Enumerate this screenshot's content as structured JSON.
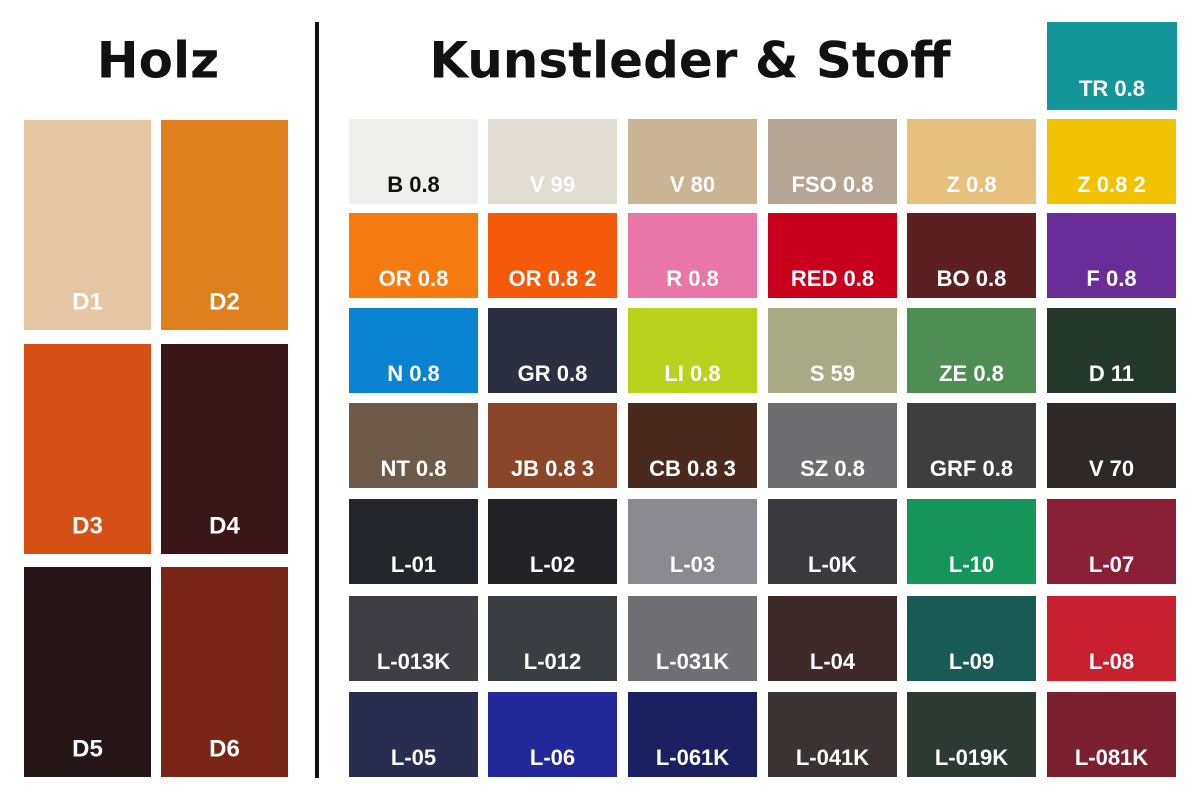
{
  "holz": {
    "title": "Holz",
    "swatches": [
      {
        "label": "D1",
        "color": "#e6c6a2"
      },
      {
        "label": "D2",
        "color": "#de7e1c"
      },
      {
        "label": "D3",
        "color": "#d65016"
      },
      {
        "label": "D4",
        "color": "#3a1619"
      },
      {
        "label": "D5",
        "color": "#251717"
      },
      {
        "label": "D6",
        "color": "#7a2616"
      }
    ]
  },
  "stoff": {
    "title": "Kunstleder & Stoff",
    "extra": {
      "label": "TR 0.8",
      "color": "#14979a"
    },
    "rows": [
      [
        {
          "label": "B 0.8",
          "color": "#efefed",
          "label_color": "#111111"
        },
        {
          "label": "V 99",
          "color": "#e2ddd2"
        },
        {
          "label": "V 80",
          "color": "#c9b594"
        },
        {
          "label": "FSO 0.8",
          "color": "#b4a595"
        },
        {
          "label": "Z 0.8",
          "color": "#e8c07e"
        },
        {
          "label": "Z 0.8 2",
          "color": "#f2c200"
        }
      ],
      [
        {
          "label": "OR 0.8",
          "color": "#f57a10"
        },
        {
          "label": "OR 0.8 2",
          "color": "#f55a0a"
        },
        {
          "label": "R 0.8",
          "color": "#e877a8"
        },
        {
          "label": "RED 0.8",
          "color": "#c8001e"
        },
        {
          "label": "BO 0.8",
          "color": "#5c1f22"
        },
        {
          "label": "F 0.8",
          "color": "#6a2d98"
        }
      ],
      [
        {
          "label": "N 0.8",
          "color": "#0a82d2"
        },
        {
          "label": "GR 0.8",
          "color": "#2b2f40"
        },
        {
          "label": "LI 0.8",
          "color": "#b8d21e"
        },
        {
          "label": "S 59",
          "color": "#a8aa84"
        },
        {
          "label": "ZE 0.8",
          "color": "#4f8e52"
        },
        {
          "label": "D 11",
          "color": "#24392c"
        }
      ],
      [
        {
          "label": "NT 0.8",
          "color": "#6e5a48"
        },
        {
          "label": "JB 0.8 3",
          "color": "#8a4628"
        },
        {
          "label": "CB 0.8 3",
          "color": "#4a2a1e"
        },
        {
          "label": "SZ 0.8",
          "color": "#6e6e70"
        },
        {
          "label": "GRF 0.8",
          "color": "#3e3e3e"
        },
        {
          "label": "V 70",
          "color": "#2e2826"
        }
      ],
      [
        {
          "label": "L-01",
          "color": "#25262c"
        },
        {
          "label": "L-02",
          "color": "#232327"
        },
        {
          "label": "L-03",
          "color": "#8a8a90"
        },
        {
          "label": "L-0K",
          "color": "#3a3a3e"
        },
        {
          "label": "L-10",
          "color": "#15955a"
        },
        {
          "label": "L-07",
          "color": "#8a2038"
        }
      ],
      [
        {
          "label": "L-013K",
          "color": "#3e3e44"
        },
        {
          "label": "L-012",
          "color": "#3a3d42"
        },
        {
          "label": "L-031K",
          "color": "#707074"
        },
        {
          "label": "L-04",
          "color": "#3e2a28"
        },
        {
          "label": "L-09",
          "color": "#1a5a55"
        },
        {
          "label": "L-08",
          "color": "#c8202e"
        }
      ],
      [
        {
          "label": "L-05",
          "color": "#2a2d52"
        },
        {
          "label": "L-06",
          "color": "#22279a"
        },
        {
          "label": "L-061K",
          "color": "#1a2060"
        },
        {
          "label": "L-041K",
          "color": "#3a3233"
        },
        {
          "label": "L-019K",
          "color": "#2c3a33"
        },
        {
          "label": "L-081K",
          "color": "#7a2030"
        }
      ]
    ]
  }
}
